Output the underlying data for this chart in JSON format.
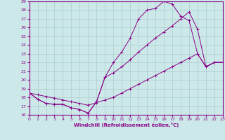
{
  "xlabel": "Windchill (Refroidissement éolien,°C)",
  "bg_color": "#cce8e8",
  "line_color": "#880088",
  "grid_color": "#aacccc",
  "xlim": [
    0,
    23
  ],
  "ylim": [
    16,
    29
  ],
  "xticks": [
    0,
    1,
    2,
    3,
    4,
    5,
    6,
    7,
    8,
    9,
    10,
    11,
    12,
    13,
    14,
    15,
    16,
    17,
    18,
    19,
    20,
    21,
    22,
    23
  ],
  "yticks": [
    16,
    17,
    18,
    19,
    20,
    21,
    22,
    23,
    24,
    25,
    26,
    27,
    28,
    29
  ],
  "line1_x": [
    0,
    1,
    2,
    3,
    4,
    5,
    6,
    7,
    8,
    9,
    10,
    11,
    12,
    13,
    14,
    15,
    16,
    17,
    18,
    19,
    20,
    21,
    22,
    23
  ],
  "line1_y": [
    18.5,
    17.8,
    17.3,
    17.2,
    17.2,
    16.8,
    16.6,
    16.2,
    17.5,
    20.3,
    22.0,
    23.2,
    24.8,
    27.0,
    28.0,
    28.2,
    29.0,
    28.7,
    27.3,
    26.8,
    23.0,
    21.5,
    22.0,
    22.0
  ],
  "line2_x": [
    0,
    1,
    2,
    3,
    4,
    5,
    6,
    7,
    8,
    9,
    10,
    11,
    12,
    13,
    14,
    15,
    16,
    17,
    18,
    19,
    20,
    21,
    22,
    23
  ],
  "line2_y": [
    18.5,
    18.3,
    18.1,
    17.9,
    17.7,
    17.5,
    17.3,
    17.1,
    17.4,
    17.7,
    18.0,
    18.5,
    19.0,
    19.5,
    20.0,
    20.5,
    21.0,
    21.5,
    22.0,
    22.5,
    23.0,
    21.5,
    22.0,
    22.0
  ],
  "line3_x": [
    0,
    1,
    2,
    3,
    4,
    5,
    6,
    7,
    8,
    9,
    10,
    11,
    12,
    13,
    14,
    15,
    16,
    17,
    18,
    19,
    20,
    21,
    22,
    23
  ],
  "line3_y": [
    18.5,
    17.8,
    17.3,
    17.2,
    17.2,
    16.8,
    16.6,
    16.2,
    17.5,
    20.3,
    20.8,
    21.5,
    22.3,
    23.2,
    24.0,
    24.8,
    25.5,
    26.2,
    27.0,
    27.8,
    25.8,
    21.5,
    22.0,
    22.0
  ]
}
